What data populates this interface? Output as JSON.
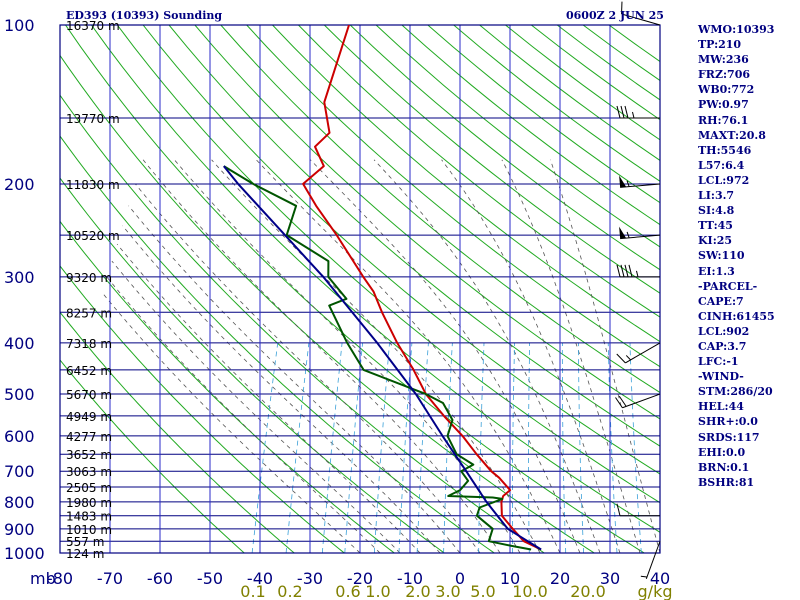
{
  "header": {
    "station": "ED393 (10393) Sounding",
    "time": "0600Z  2 JUN 25"
  },
  "side_panel": [
    "WMO:10393",
    "TP:210",
    "MW:236",
    "FRZ:706",
    "WB0:772",
    "PW:0.97",
    "RH:76.1",
    "MAXT:20.8",
    "TH:5546",
    "L57:6.4",
    "LCL:972",
    "LI:3.7",
    "SI:4.8",
    "TT:45",
    "KI:25",
    "SW:110",
    "EI:1.3",
    "-PARCEL-",
    "CAPE:7",
    "CINH:61455",
    "LCL:902",
    "CAP:3.7",
    "LFC:-1",
    "-WIND-",
    "STM:286/20",
    "HEL:44",
    "SHR+:0.0",
    "SRDS:117",
    "EHI:0.0",
    "BRN:0.1",
    "BSHR:81"
  ],
  "chart_data": {
    "type": "line",
    "pressure_levels": [
      100,
      200,
      300,
      400,
      500,
      600,
      700,
      800,
      900,
      1000
    ],
    "pressure_ticks": [
      "100",
      "200",
      "300",
      "400",
      "500",
      "600",
      "700",
      "800",
      "900",
      "1000"
    ],
    "pressure_unit": "mb",
    "pressure_range": [
      100,
      1000
    ],
    "temperature_ticks": [
      -80,
      -70,
      -60,
      -50,
      -40,
      -30,
      -20,
      -10,
      0,
      10,
      20,
      30,
      40
    ],
    "temperature_range": [
      -80,
      40
    ],
    "mixing_ratio_labels": [
      "0.1",
      "0.2",
      "0.6",
      "1.0",
      "2.0",
      "3.0",
      "5.0",
      "10.0",
      "20.0"
    ],
    "mixing_ratio_unit": "g/kg",
    "height_labels": [
      {
        "p": 100,
        "label": "16370 m"
      },
      {
        "p": 150,
        "label": "13770 m"
      },
      {
        "p": 200,
        "label": "11830 m"
      },
      {
        "p": 250,
        "label": "10520 m"
      },
      {
        "p": 300,
        "label": "9320 m"
      },
      {
        "p": 350,
        "label": "8257 m"
      },
      {
        "p": 400,
        "label": "7318 m"
      },
      {
        "p": 450,
        "label": "6452 m"
      },
      {
        "p": 500,
        "label": "5670 m"
      },
      {
        "p": 550,
        "label": "4949 m"
      },
      {
        "p": 600,
        "label": "4277 m"
      },
      {
        "p": 650,
        "label": "3652 m"
      },
      {
        "p": 700,
        "label": "3063 m"
      },
      {
        "p": 750,
        "label": "2505 m"
      },
      {
        "p": 800,
        "label": "1980 m"
      },
      {
        "p": 850,
        "label": "1483 m"
      },
      {
        "p": 900,
        "label": "1010 m"
      },
      {
        "p": 950,
        "label": "557 m"
      },
      {
        "p": 1000,
        "label": "124 m"
      }
    ],
    "series": [
      {
        "key": "temperature",
        "color": "#cc0000",
        "points": [
          [
            985,
            16
          ],
          [
            950,
            12
          ],
          [
            900,
            9
          ],
          [
            850,
            6
          ],
          [
            800,
            5
          ],
          [
            780,
            5
          ],
          [
            760,
            6
          ],
          [
            720,
            3
          ],
          [
            700,
            1
          ],
          [
            650,
            -3
          ],
          [
            600,
            -7
          ],
          [
            550,
            -12
          ],
          [
            500,
            -17
          ],
          [
            450,
            -21
          ],
          [
            400,
            -26
          ],
          [
            350,
            -31
          ],
          [
            320,
            -34
          ],
          [
            300,
            -37
          ],
          [
            250,
            -45
          ],
          [
            220,
            -51
          ],
          [
            200,
            -55
          ],
          [
            185,
            -52
          ],
          [
            170,
            -55
          ],
          [
            160,
            -53
          ],
          [
            140,
            -56
          ],
          [
            120,
            -56
          ],
          [
            100,
            -56
          ]
        ]
      },
      {
        "key": "dewpoint",
        "color": "#005500",
        "points": [
          [
            985,
            14
          ],
          [
            970,
            10
          ],
          [
            950,
            5
          ],
          [
            900,
            5
          ],
          [
            850,
            1
          ],
          [
            820,
            1
          ],
          [
            790,
            5
          ],
          [
            785,
            3
          ],
          [
            780,
            -6
          ],
          [
            760,
            -4
          ],
          [
            730,
            -3
          ],
          [
            700,
            -5
          ],
          [
            680,
            -3
          ],
          [
            650,
            -7
          ],
          [
            600,
            -10
          ],
          [
            560,
            -10
          ],
          [
            520,
            -13
          ],
          [
            500,
            -17
          ],
          [
            450,
            -31
          ],
          [
            400,
            -36
          ],
          [
            340,
            -42
          ],
          [
            330,
            -39
          ],
          [
            300,
            -44
          ],
          [
            280,
            -45
          ],
          [
            250,
            -55
          ],
          [
            220,
            -55
          ],
          [
            200,
            -65
          ],
          [
            185,
            -72
          ]
        ]
      },
      {
        "key": "parcel",
        "color": "#000088",
        "points": [
          [
            985,
            16
          ],
          [
            900,
            8
          ],
          [
            800,
            2
          ],
          [
            700,
            -4
          ],
          [
            600,
            -11
          ],
          [
            500,
            -19
          ],
          [
            400,
            -30
          ],
          [
            300,
            -45
          ],
          [
            200,
            -68
          ],
          [
            185,
            -72
          ]
        ]
      }
    ],
    "wind_barbs": [
      {
        "p": 100,
        "dir": 286,
        "kt": 10
      },
      {
        "p": 150,
        "dir": 270,
        "kt": 35
      },
      {
        "p": 200,
        "dir": 265,
        "kt": 55
      },
      {
        "p": 250,
        "dir": 265,
        "kt": 55
      },
      {
        "p": 300,
        "dir": 270,
        "kt": 45
      },
      {
        "p": 400,
        "dir": 240,
        "kt": 15
      },
      {
        "p": 500,
        "dir": 250,
        "kt": 20
      },
      {
        "p": 850,
        "dir": 270,
        "kt": 10
      },
      {
        "p": 950,
        "dir": 200,
        "kt": 5
      }
    ]
  },
  "colors": {
    "frame": "#000080",
    "isotherm": "#2828c8",
    "dry_adiabat": "#22aa22",
    "moist_adiabat": "#555555",
    "mixing_ratio": "#3aa0d8",
    "mixing_label": "#808000",
    "label_blue": "#000080"
  }
}
